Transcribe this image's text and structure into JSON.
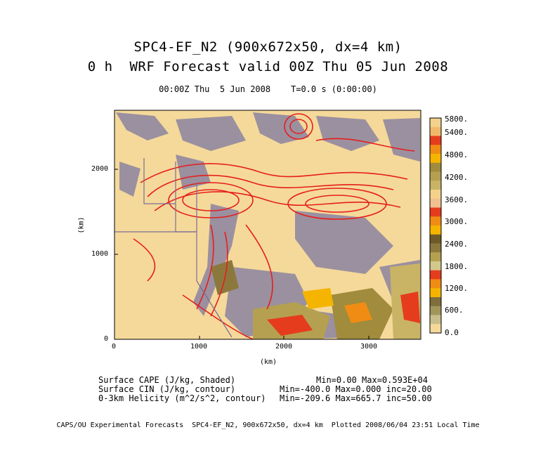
{
  "header": {
    "title_line1": "SPC4-EF_N2 (900x672x50, dx=4 km)",
    "title_line2": "0 h  WRF Forecast valid 00Z Thu 05 Jun 2008",
    "time_line": "00:00Z Thu  5 Jun 2008    T=0.0 s (0:00:00)"
  },
  "axes": {
    "x_label": "(km)",
    "y_label": "(km)",
    "x_ticks": [
      "0",
      "1000",
      "2000",
      "3000"
    ],
    "y_ticks": [
      "0",
      "1000",
      "2000"
    ]
  },
  "colorbar": {
    "labels": [
      "5800.",
      "5400.",
      "4800.",
      "4200.",
      "3600.",
      "3000.",
      "2400.",
      "1800.",
      "1200.",
      "600.",
      "0.0"
    ],
    "colors": [
      "#f5d28c",
      "#f0b96a",
      "#e63c1e",
      "#f08c14",
      "#f5b400",
      "#a08c3c",
      "#b4a050",
      "#c8b464",
      "#f5d28c",
      "#f0c090",
      "#e63c1e",
      "#f08c14",
      "#f5b400",
      "#6e5a28",
      "#8c783c",
      "#b4a050",
      "#d2c88c",
      "#e63c1e",
      "#f08c14",
      "#f5b400",
      "#7d6e3c",
      "#a0965a",
      "#c8be8c",
      "#f5d99a"
    ]
  },
  "legend": {
    "row1_left": "Surface CAPE (J/kg, Shaded)",
    "row1_right": "Min=0.00 Max=0.593E+04",
    "row2_left": "Surface CIN (J/kg, contour)",
    "row2_right": "Min=-400.0 Max=0.000 inc=20.00",
    "row3_left": "0-3km Helicity (m^2/s^2, contour)",
    "row3_right": "Min=-209.6 Max=665.7 inc=50.00"
  },
  "footer": "CAPS/OU Experimental Forecasts  SPC4-EF_N2, 900x672x50, dx=4 km  Plotted 2008/06/04 23:51 Local Time",
  "colors": {
    "background_shading": "#f5d99a",
    "cin_contour": "#7a6e96",
    "helicity_contour": "#e61e1e",
    "boundary": "#7a6e96"
  }
}
